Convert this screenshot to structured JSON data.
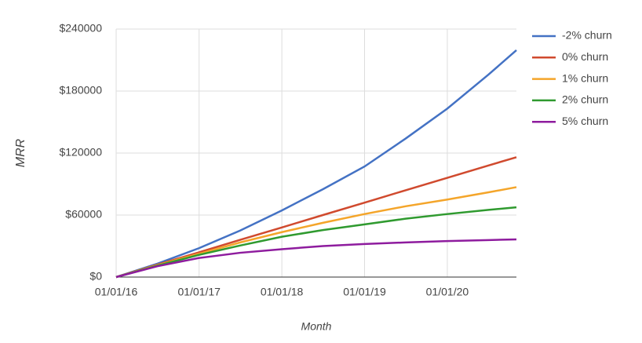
{
  "chart_data": {
    "type": "line",
    "x_label": "Month",
    "y_label": "MRR",
    "x": [
      "2016-01-01",
      "2016-07-01",
      "2017-01-01",
      "2017-07-01",
      "2018-01-01",
      "2018-07-01",
      "2019-01-01",
      "2019-07-01",
      "2020-01-01",
      "2020-07-01",
      "2020-11-01"
    ],
    "series": [
      {
        "name": "-2% churn",
        "color": "#4472c4",
        "values": [
          0,
          13000,
          28000,
          45000,
          64500,
          85000,
          107000,
          134000,
          163000,
          196000,
          219500
        ]
      },
      {
        "name": "0% churn",
        "color": "#d04a2e",
        "values": [
          0,
          12000,
          24000,
          36000,
          48000,
          60000,
          72000,
          84000,
          96000,
          108000,
          116000
        ]
      },
      {
        "name": "1% churn",
        "color": "#f4a52a",
        "values": [
          0,
          11500,
          22500,
          33500,
          43500,
          52500,
          61000,
          68500,
          75000,
          82000,
          87000
        ]
      },
      {
        "name": "2% churn",
        "color": "#2f9a2f",
        "values": [
          0,
          11000,
          21500,
          30500,
          39000,
          45500,
          51000,
          56500,
          61000,
          65000,
          67500
        ]
      },
      {
        "name": "5% churn",
        "color": "#8e1c9e",
        "values": [
          0,
          10500,
          18500,
          23500,
          27000,
          30000,
          32000,
          33500,
          34800,
          35800,
          36500
        ]
      }
    ],
    "xlim": [
      "2016-01-01",
      "2020-11-01"
    ],
    "xticks": [
      {
        "value": "2016-01-01",
        "label": "01/01/16"
      },
      {
        "value": "2017-01-01",
        "label": "01/01/17"
      },
      {
        "value": "2018-01-01",
        "label": "01/01/18"
      },
      {
        "value": "2019-01-01",
        "label": "01/01/19"
      },
      {
        "value": "2020-01-01",
        "label": "01/01/20"
      }
    ],
    "ylim": [
      0,
      240000
    ],
    "yticks": [
      {
        "value": 0,
        "label": "$0"
      },
      {
        "value": 60000,
        "label": "$60000"
      },
      {
        "value": 120000,
        "label": "$120000"
      },
      {
        "value": 180000,
        "label": "$180000"
      },
      {
        "value": 240000,
        "label": "$240000"
      }
    ],
    "grid": true,
    "legend": "right"
  }
}
